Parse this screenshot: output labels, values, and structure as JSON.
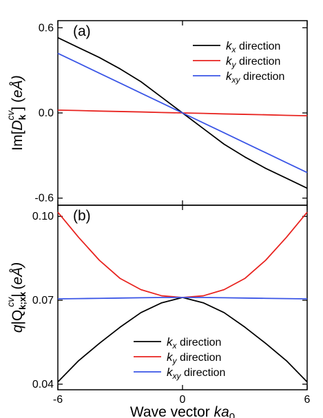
{
  "chart_data": [
    {
      "type": "line",
      "panel_label": "(a)",
      "ylabel": "Im[D_k^cv] (eÅ)",
      "xlim": [
        -6,
        6
      ],
      "ylim": [
        -0.65,
        0.65
      ],
      "yticks": [
        0.6,
        0.0,
        -0.6
      ],
      "ytick_labels": [
        "0.6",
        "0.0",
        "-0.6"
      ],
      "legend_placement": "top-right",
      "x": [
        -6,
        -5,
        -4,
        -3,
        -2,
        -1,
        0,
        1,
        2,
        3,
        4,
        5,
        6
      ],
      "series": [
        {
          "name": "k_x direction",
          "color": "#000000",
          "values": [
            0.53,
            0.46,
            0.39,
            0.31,
            0.22,
            0.11,
            0.0,
            -0.11,
            -0.22,
            -0.31,
            -0.39,
            -0.46,
            -0.53
          ]
        },
        {
          "name": "k_y direction",
          "color": "#e8231f",
          "values": [
            0.02,
            0.017,
            0.013,
            0.01,
            0.007,
            0.003,
            0.0,
            -0.003,
            -0.007,
            -0.01,
            -0.013,
            -0.017,
            -0.02
          ]
        },
        {
          "name": "k_xy direction",
          "color": "#3a55e6",
          "values": [
            0.42,
            0.35,
            0.28,
            0.21,
            0.14,
            0.07,
            0.0,
            -0.07,
            -0.14,
            -0.21,
            -0.28,
            -0.35,
            -0.42
          ]
        }
      ]
    },
    {
      "type": "line",
      "panel_label": "(b)",
      "ylabel": "q|Q_k;xx^cv| (eÅ)",
      "xlabel": "Wave vector ka0",
      "xlim": [
        -6,
        6
      ],
      "ylim": [
        0.038,
        0.104
      ],
      "xticks": [
        -6,
        0,
        6
      ],
      "xtick_labels": [
        "-6",
        "0",
        "6"
      ],
      "yticks": [
        0.1,
        0.07,
        0.04
      ],
      "ytick_labels": [
        "0.10",
        "0.07",
        "0.04"
      ],
      "legend_placement": "bottom-center",
      "x": [
        -6,
        -5,
        -4,
        -3,
        -2,
        -1,
        0,
        1,
        2,
        3,
        4,
        5,
        6
      ],
      "series": [
        {
          "name": "k_x direction",
          "color": "#000000",
          "values": [
            0.0408,
            0.0484,
            0.0546,
            0.0604,
            0.0656,
            0.0691,
            0.071,
            0.0691,
            0.0656,
            0.0604,
            0.0546,
            0.0484,
            0.0408
          ]
        },
        {
          "name": "k_y direction",
          "color": "#e8231f",
          "values": [
            0.1015,
            0.0925,
            0.0843,
            0.0778,
            0.0738,
            0.0716,
            0.071,
            0.0716,
            0.0738,
            0.0778,
            0.0843,
            0.0925,
            0.1015
          ]
        },
        {
          "name": "k_xy direction",
          "color": "#3a55e6",
          "values": [
            0.0705,
            0.0706,
            0.0707,
            0.0708,
            0.0709,
            0.071,
            0.071,
            0.071,
            0.0709,
            0.0708,
            0.0707,
            0.0706,
            0.0705
          ]
        }
      ]
    }
  ]
}
